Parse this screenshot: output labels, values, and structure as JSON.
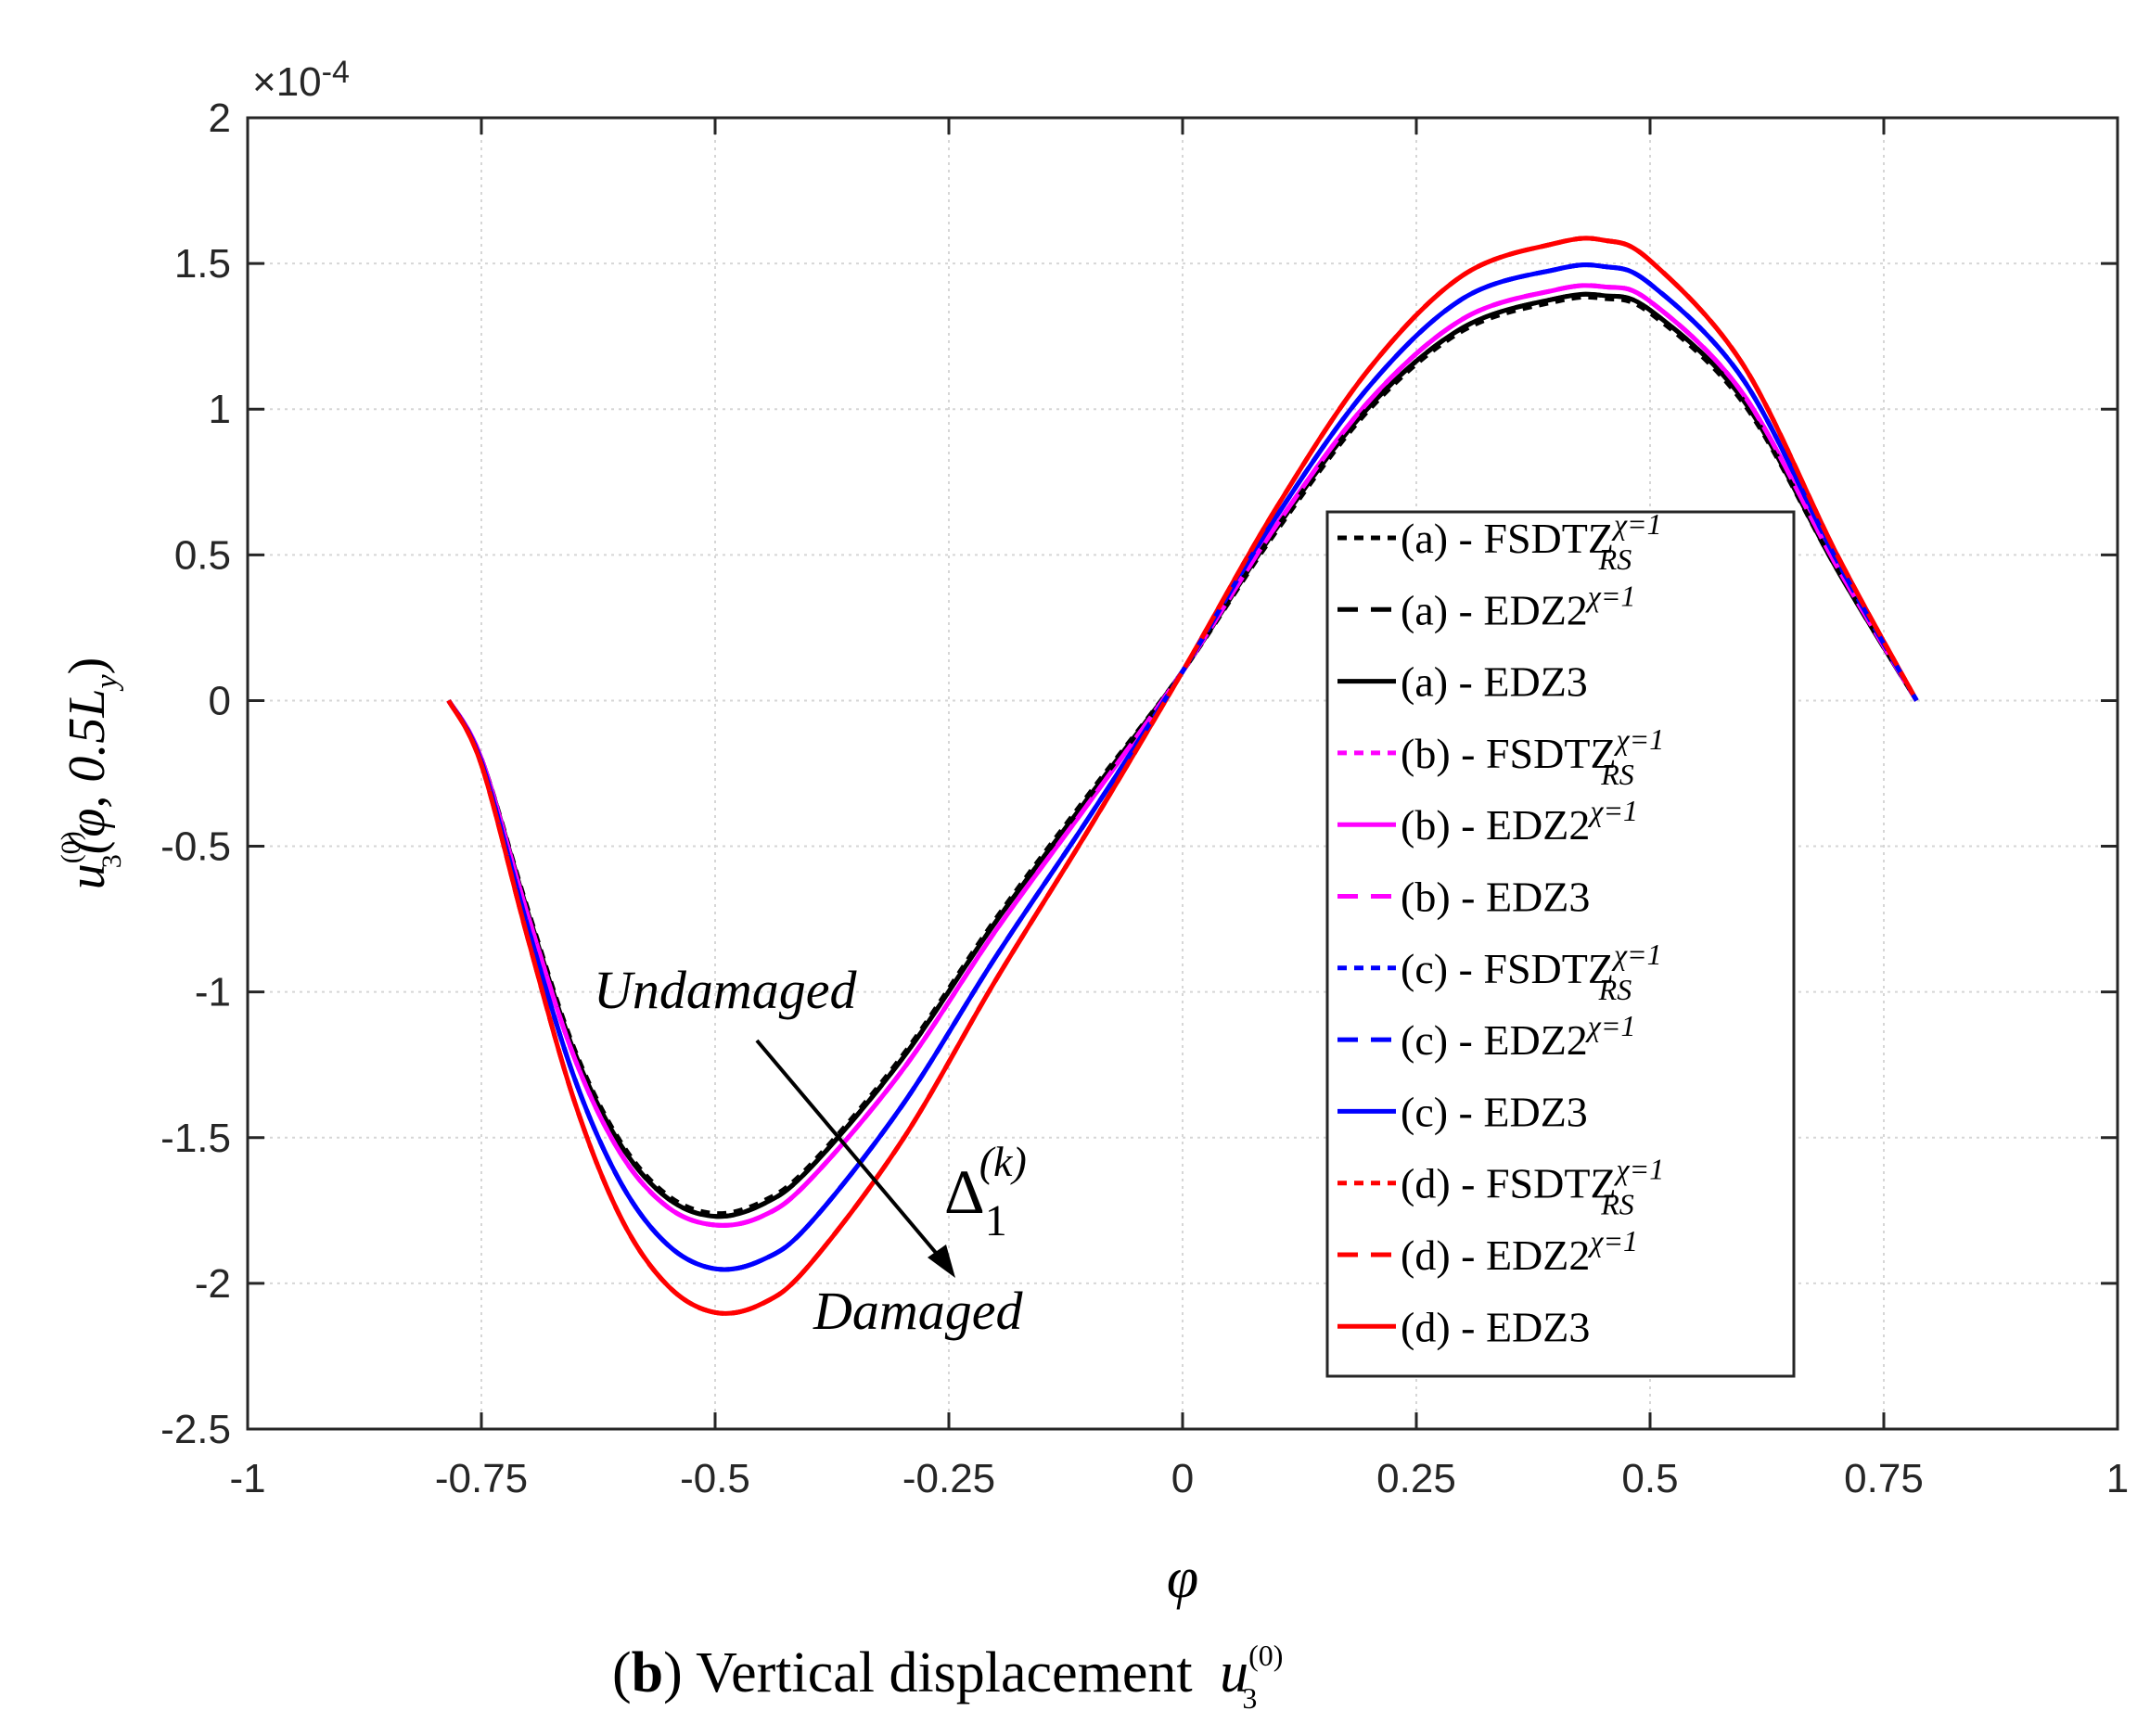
{
  "chart_data": {
    "type": "line",
    "xlabel": "φ",
    "ylabel_main": "u",
    "ylabel_sub": "3",
    "ylabel_sup": "(0)",
    "ylabel_rest": "(φ, 0.5L",
    "ylabel_y_sub": "y",
    "ylabel_close": ")",
    "exponent_label": "×10",
    "exponent_power": "-4",
    "xlim": [
      -1,
      1
    ],
    "ylim": [
      -2.5,
      2
    ],
    "x_ticks": [
      -1,
      -0.75,
      -0.5,
      -0.25,
      0,
      0.25,
      0.5,
      0.75,
      1
    ],
    "x_tick_labels": [
      "-1",
      "-0.75",
      "-0.5",
      "-0.25",
      "0",
      "0.25",
      "0.5",
      "0.75",
      "1"
    ],
    "y_ticks": [
      -2.5,
      -2,
      -1.5,
      -1,
      -0.5,
      0,
      0.5,
      1,
      1.5,
      2
    ],
    "y_tick_labels": [
      "-2.5",
      "-2",
      "-1.5",
      "-1",
      "-0.5",
      "0",
      "0.5",
      "1",
      "1.5",
      "2"
    ],
    "grid": true,
    "legend_position": "right",
    "caption_bold": "b",
    "caption_text": " Vertical displacement ",
    "caption_sym": "u",
    "caption_sub": "3",
    "caption_sup": "(0)",
    "annotations": {
      "undamaged": "Undamaged",
      "damaged": "Damaged",
      "delta": "Δ",
      "delta_sub": "1",
      "delta_sup": "(k)"
    },
    "series": [
      {
        "name": "(a) - FSDTZ",
        "sup": "χ=1",
        "sub": "RS",
        "color": "#000000",
        "dash": "dotted",
        "x": [
          -0.785,
          -0.75,
          -0.7,
          -0.65,
          -0.6,
          -0.55,
          -0.5,
          -0.45,
          -0.4,
          -0.3,
          -0.2,
          -0.1,
          0,
          0.1,
          0.2,
          0.3,
          0.4,
          0.45,
          0.5,
          0.6,
          0.7,
          0.785
        ],
        "y": [
          0,
          -0.2,
          -0.72,
          -1.2,
          -1.52,
          -1.7,
          -1.76,
          -1.72,
          -1.6,
          -1.22,
          -0.75,
          -0.32,
          0.1,
          0.58,
          1.0,
          1.27,
          1.37,
          1.38,
          1.33,
          1.02,
          0.45,
          0
        ]
      },
      {
        "name": "(a) - EDZ2",
        "sup": "χ=1",
        "sub": "",
        "color": "#000000",
        "dash": "dashed",
        "x": [
          -0.785,
          -0.75,
          -0.7,
          -0.65,
          -0.6,
          -0.55,
          -0.5,
          -0.45,
          -0.4,
          -0.3,
          -0.2,
          -0.1,
          0,
          0.1,
          0.2,
          0.3,
          0.4,
          0.45,
          0.5,
          0.6,
          0.7,
          0.785
        ],
        "y": [
          0,
          -0.2,
          -0.73,
          -1.21,
          -1.53,
          -1.71,
          -1.77,
          -1.73,
          -1.61,
          -1.23,
          -0.76,
          -0.33,
          0.1,
          0.59,
          1.01,
          1.28,
          1.38,
          1.39,
          1.34,
          1.03,
          0.45,
          0
        ]
      },
      {
        "name": "(a) - EDZ3",
        "sup": "",
        "sub": "",
        "color": "#000000",
        "dash": "solid",
        "x": [
          -0.785,
          -0.75,
          -0.7,
          -0.65,
          -0.6,
          -0.55,
          -0.5,
          -0.45,
          -0.4,
          -0.3,
          -0.2,
          -0.1,
          0,
          0.1,
          0.2,
          0.3,
          0.4,
          0.45,
          0.5,
          0.6,
          0.7,
          0.785
        ],
        "y": [
          0,
          -0.2,
          -0.73,
          -1.21,
          -1.53,
          -1.71,
          -1.77,
          -1.73,
          -1.61,
          -1.23,
          -0.76,
          -0.33,
          0.1,
          0.59,
          1.01,
          1.28,
          1.38,
          1.39,
          1.34,
          1.03,
          0.45,
          0
        ]
      },
      {
        "name": "(b) - FSDTZ",
        "sup": "χ=1",
        "sub": "RS",
        "color": "#ff00ff",
        "dash": "dotted",
        "x": [
          -0.785,
          -0.75,
          -0.7,
          -0.65,
          -0.6,
          -0.55,
          -0.5,
          -0.45,
          -0.4,
          -0.3,
          -0.2,
          -0.1,
          0,
          0.1,
          0.2,
          0.3,
          0.4,
          0.45,
          0.5,
          0.6,
          0.7,
          0.785
        ],
        "y": [
          0,
          -0.2,
          -0.74,
          -1.23,
          -1.56,
          -1.74,
          -1.8,
          -1.77,
          -1.65,
          -1.27,
          -0.79,
          -0.35,
          0.1,
          0.6,
          1.03,
          1.31,
          1.41,
          1.42,
          1.37,
          1.05,
          0.46,
          0
        ]
      },
      {
        "name": "(b) - EDZ2",
        "sup": "χ=1",
        "sub": "",
        "color": "#ff00ff",
        "dash": "solid",
        "x": [
          -0.785,
          -0.75,
          -0.7,
          -0.65,
          -0.6,
          -0.55,
          -0.5,
          -0.45,
          -0.4,
          -0.3,
          -0.2,
          -0.1,
          0,
          0.1,
          0.2,
          0.3,
          0.4,
          0.45,
          0.5,
          0.6,
          0.7,
          0.785
        ],
        "y": [
          0,
          -0.2,
          -0.74,
          -1.23,
          -1.56,
          -1.74,
          -1.8,
          -1.77,
          -1.65,
          -1.27,
          -0.79,
          -0.35,
          0.1,
          0.6,
          1.03,
          1.31,
          1.41,
          1.42,
          1.37,
          1.05,
          0.46,
          0
        ]
      },
      {
        "name": "(b) - EDZ3",
        "sup": "",
        "sub": "",
        "color": "#ff00ff",
        "dash": "dashed",
        "x": [
          -0.785,
          -0.75,
          -0.7,
          -0.65,
          -0.6,
          -0.55,
          -0.5,
          -0.45,
          -0.4,
          -0.3,
          -0.2,
          -0.1,
          0,
          0.1,
          0.2,
          0.3,
          0.4,
          0.45,
          0.5,
          0.6,
          0.7,
          0.785
        ],
        "y": [
          0,
          -0.2,
          -0.74,
          -1.23,
          -1.56,
          -1.74,
          -1.8,
          -1.77,
          -1.65,
          -1.27,
          -0.79,
          -0.35,
          0.1,
          0.6,
          1.03,
          1.31,
          1.41,
          1.42,
          1.37,
          1.05,
          0.46,
          0
        ]
      },
      {
        "name": "(c) - FSDTZ",
        "sup": "χ=1",
        "sub": "RS",
        "color": "#0000ff",
        "dash": "dotted",
        "x": [
          -0.785,
          -0.75,
          -0.7,
          -0.65,
          -0.6,
          -0.55,
          -0.5,
          -0.45,
          -0.4,
          -0.3,
          -0.2,
          -0.1,
          0,
          0.1,
          0.2,
          0.3,
          0.4,
          0.45,
          0.5,
          0.6,
          0.7,
          0.785
        ],
        "y": [
          0,
          -0.21,
          -0.78,
          -1.3,
          -1.66,
          -1.87,
          -1.95,
          -1.92,
          -1.8,
          -1.39,
          -0.88,
          -0.4,
          0.1,
          0.63,
          1.08,
          1.38,
          1.48,
          1.49,
          1.43,
          1.1,
          0.48,
          0
        ]
      },
      {
        "name": "(c) - EDZ2",
        "sup": "χ=1",
        "sub": "",
        "color": "#0000ff",
        "dash": "dashed",
        "x": [
          -0.785,
          -0.75,
          -0.7,
          -0.65,
          -0.6,
          -0.55,
          -0.5,
          -0.45,
          -0.4,
          -0.3,
          -0.2,
          -0.1,
          0,
          0.1,
          0.2,
          0.3,
          0.4,
          0.45,
          0.5,
          0.6,
          0.7,
          0.785
        ],
        "y": [
          0,
          -0.21,
          -0.78,
          -1.3,
          -1.66,
          -1.87,
          -1.95,
          -1.92,
          -1.8,
          -1.39,
          -0.88,
          -0.4,
          0.1,
          0.63,
          1.08,
          1.38,
          1.48,
          1.49,
          1.43,
          1.1,
          0.48,
          0
        ]
      },
      {
        "name": "(c) - EDZ3",
        "sup": "",
        "sub": "",
        "color": "#0000ff",
        "dash": "solid",
        "x": [
          -0.785,
          -0.75,
          -0.7,
          -0.65,
          -0.6,
          -0.55,
          -0.5,
          -0.45,
          -0.4,
          -0.3,
          -0.2,
          -0.1,
          0,
          0.1,
          0.2,
          0.3,
          0.4,
          0.45,
          0.5,
          0.6,
          0.7,
          0.785
        ],
        "y": [
          0,
          -0.21,
          -0.78,
          -1.3,
          -1.66,
          -1.87,
          -1.95,
          -1.92,
          -1.8,
          -1.39,
          -0.88,
          -0.4,
          0.1,
          0.63,
          1.08,
          1.38,
          1.48,
          1.49,
          1.43,
          1.1,
          0.48,
          0
        ]
      },
      {
        "name": "(d) - FSDTZ",
        "sup": "χ=1",
        "sub": "RS",
        "color": "#ff0000",
        "dash": "dotted",
        "x": [
          -0.785,
          -0.75,
          -0.7,
          -0.65,
          -0.6,
          -0.55,
          -0.5,
          -0.45,
          -0.4,
          -0.3,
          -0.2,
          -0.1,
          0,
          0.1,
          0.2,
          0.3,
          0.4,
          0.45,
          0.5,
          0.6,
          0.7,
          0.785
        ],
        "y": [
          0,
          -0.22,
          -0.82,
          -1.38,
          -1.78,
          -2.01,
          -2.1,
          -2.07,
          -1.94,
          -1.51,
          -0.96,
          -0.44,
          0.1,
          0.66,
          1.14,
          1.46,
          1.57,
          1.58,
          1.51,
          1.15,
          0.5,
          0
        ]
      },
      {
        "name": "(d) - EDZ2",
        "sup": "χ=1",
        "sub": "",
        "color": "#ff0000",
        "dash": "dashed",
        "x": [
          -0.785,
          -0.75,
          -0.7,
          -0.65,
          -0.6,
          -0.55,
          -0.5,
          -0.45,
          -0.4,
          -0.3,
          -0.2,
          -0.1,
          0,
          0.1,
          0.2,
          0.3,
          0.4,
          0.45,
          0.5,
          0.6,
          0.7,
          0.785
        ],
        "y": [
          0,
          -0.22,
          -0.82,
          -1.38,
          -1.78,
          -2.01,
          -2.1,
          -2.07,
          -1.94,
          -1.51,
          -0.96,
          -0.44,
          0.1,
          0.66,
          1.14,
          1.46,
          1.57,
          1.58,
          1.51,
          1.15,
          0.5,
          0
        ]
      },
      {
        "name": "(d) - EDZ3",
        "sup": "",
        "sub": "",
        "color": "#ff0000",
        "dash": "solid",
        "x": [
          -0.785,
          -0.75,
          -0.7,
          -0.65,
          -0.6,
          -0.55,
          -0.5,
          -0.45,
          -0.4,
          -0.3,
          -0.2,
          -0.1,
          0,
          0.1,
          0.2,
          0.3,
          0.4,
          0.45,
          0.5,
          0.6,
          0.7,
          0.785
        ],
        "y": [
          0,
          -0.22,
          -0.82,
          -1.38,
          -1.78,
          -2.01,
          -2.1,
          -2.07,
          -1.94,
          -1.51,
          -0.96,
          -0.44,
          0.1,
          0.66,
          1.14,
          1.46,
          1.57,
          1.58,
          1.51,
          1.15,
          0.5,
          0
        ]
      }
    ]
  }
}
